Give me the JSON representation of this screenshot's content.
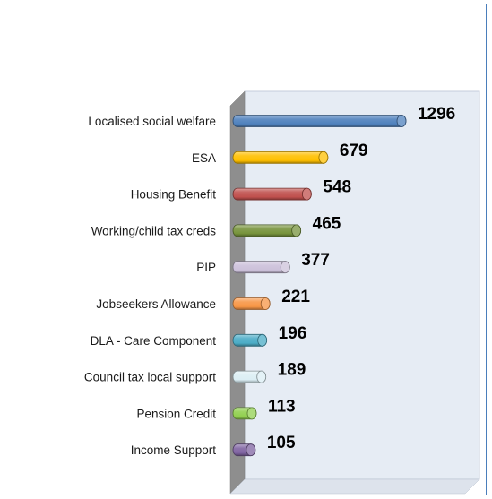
{
  "chart_data": {
    "type": "bar",
    "orientation": "horizontal",
    "title": "",
    "xlabel": "",
    "ylabel": "",
    "grid": false,
    "legend": "none",
    "xlim": [
      0,
      1300
    ],
    "categories": [
      "Localised social welfare",
      "ESA",
      "Housing Benefit",
      "Working/child tax creds",
      "PIP",
      "Jobseekers Allowance",
      "DLA - Care Component",
      "Council tax local support",
      "Pension Credit",
      "Income Support"
    ],
    "values": [
      1296,
      679,
      548,
      465,
      377,
      221,
      196,
      189,
      113,
      105
    ],
    "data_labels": [
      "1296",
      "679",
      "548",
      "465",
      "377",
      "221",
      "196",
      "189",
      "113",
      "105"
    ],
    "colors": [
      "#4f81bd",
      "#ffc000",
      "#c0504d",
      "#77933c",
      "#ccc1da",
      "#f79646",
      "#4bacc6",
      "#dbeef4",
      "#92d050",
      "#8064a2"
    ]
  }
}
